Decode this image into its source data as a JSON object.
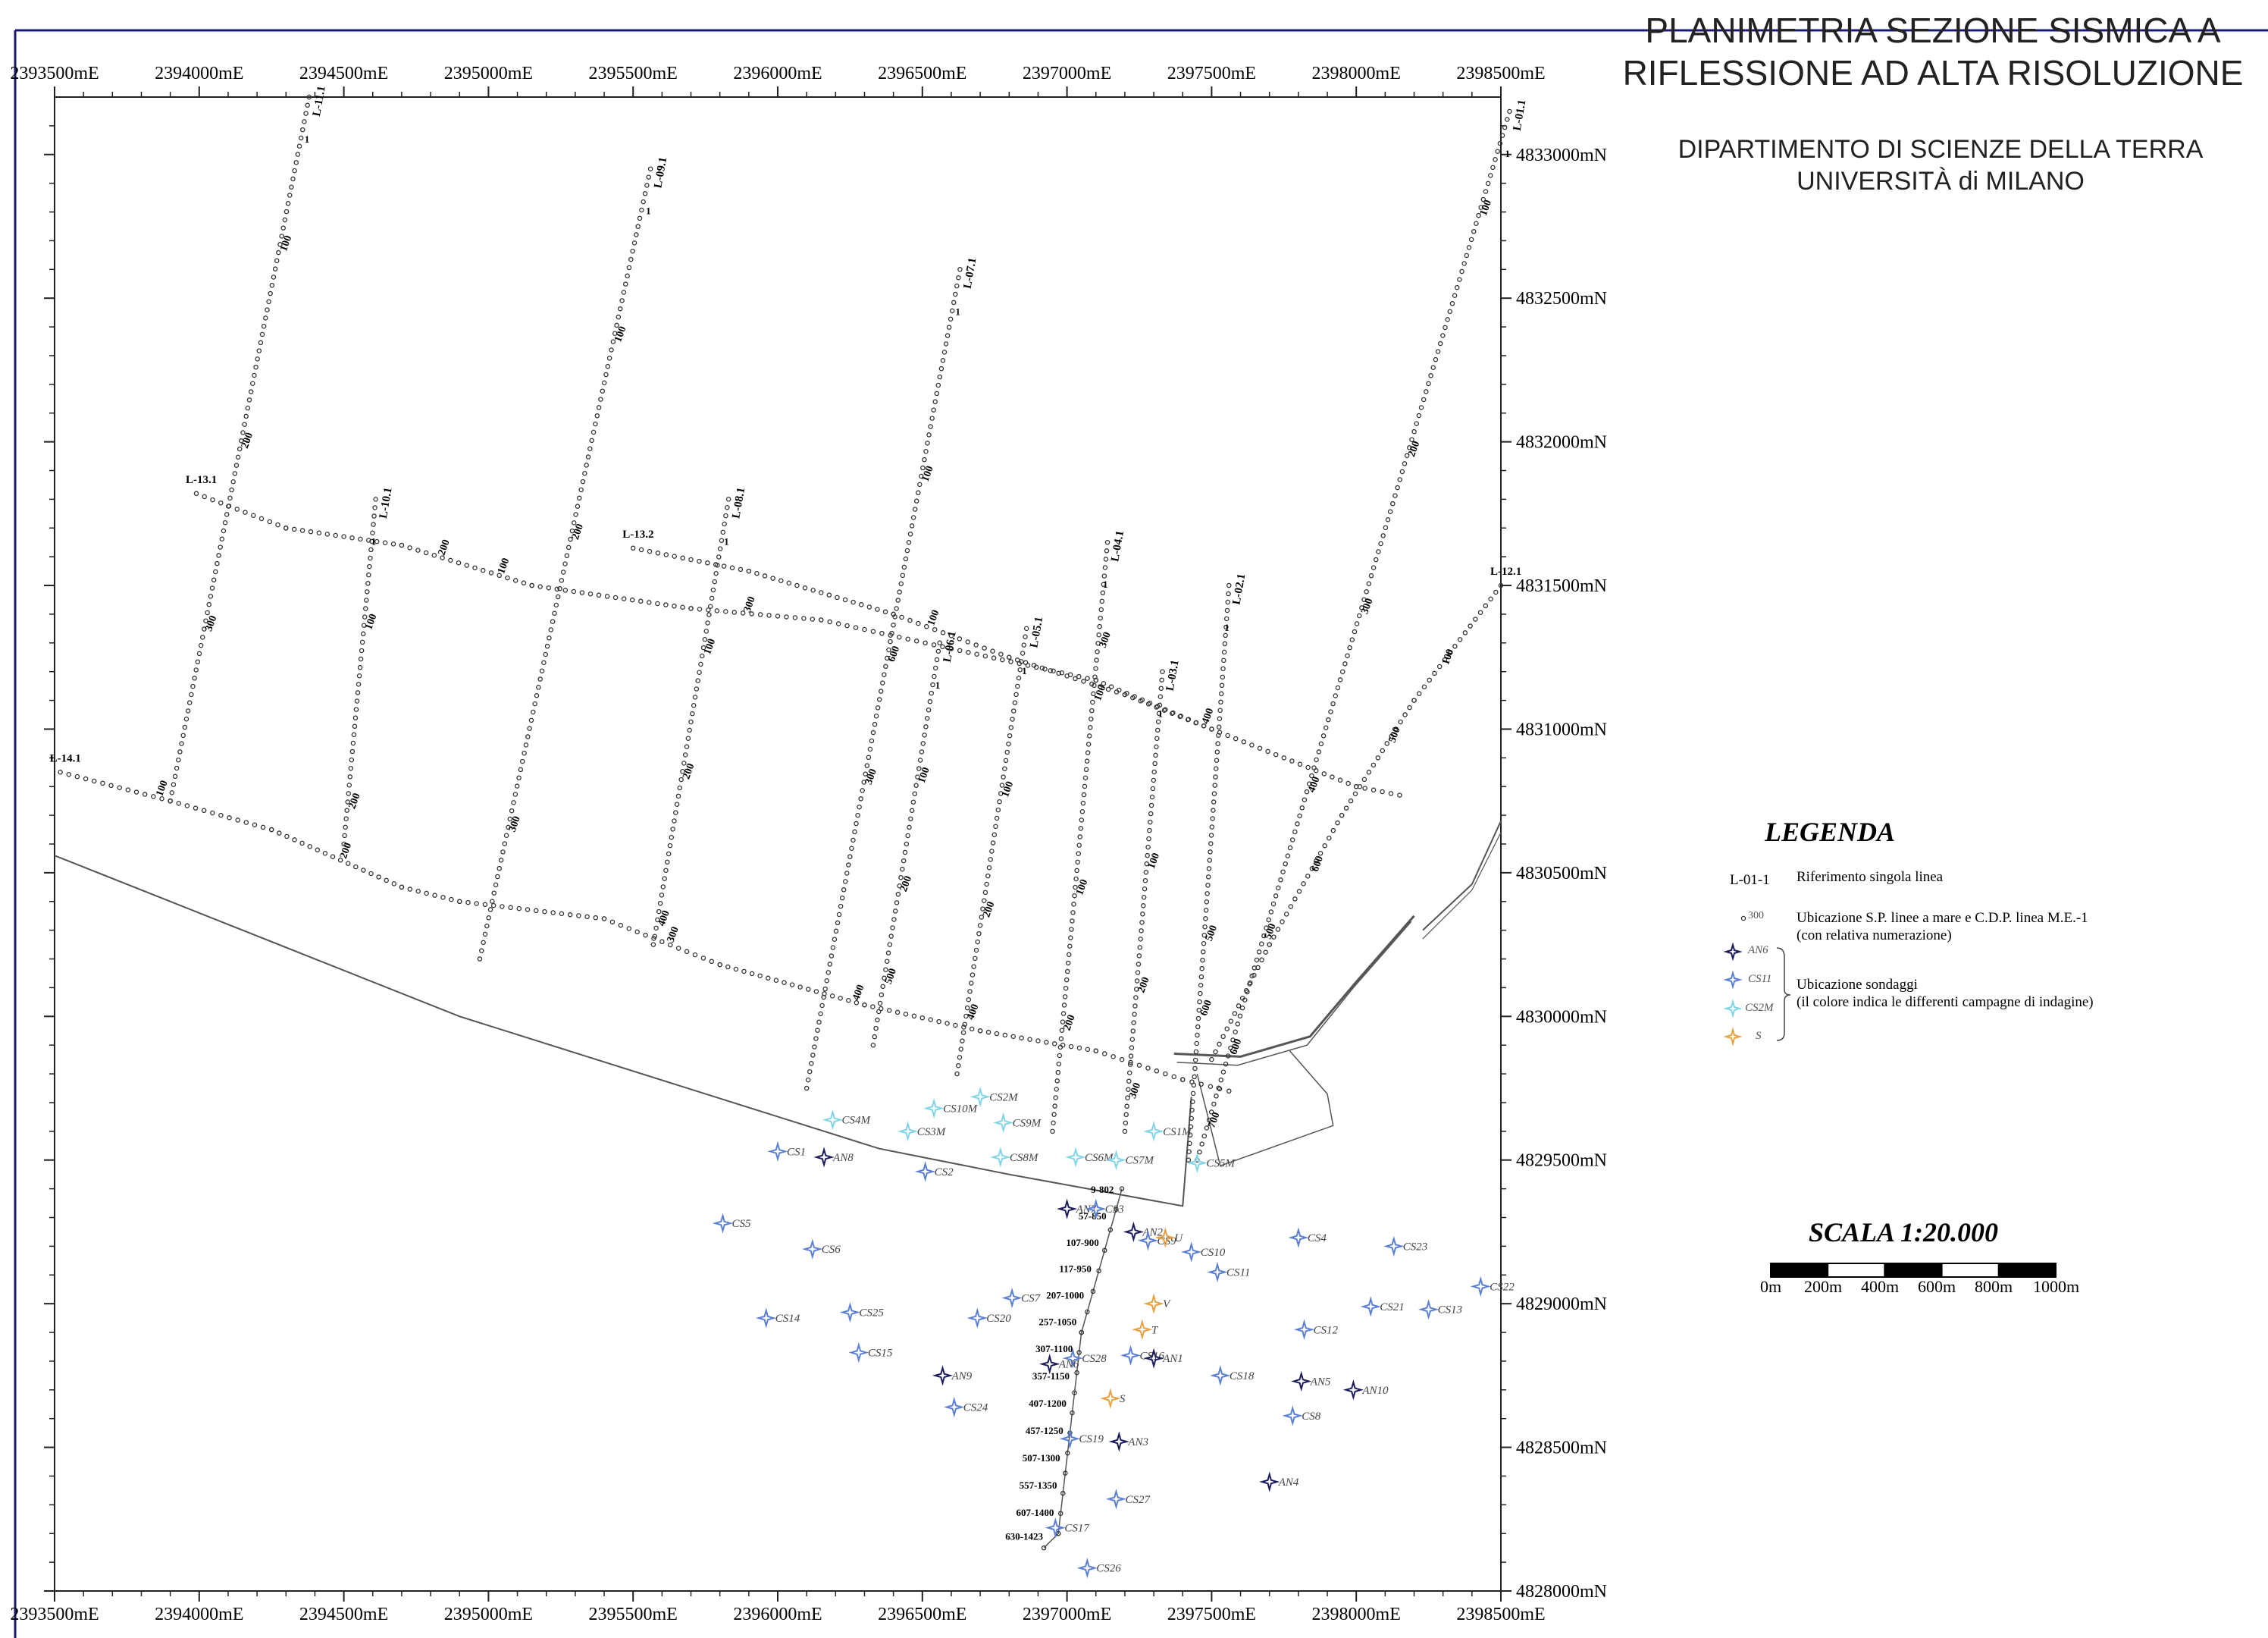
{
  "title": {
    "line1": "PLANIMETRIA SEZIONE SISMICA A",
    "line2": "RIFLESSIONE AD ALTA RISOLUZIONE"
  },
  "subtitle": {
    "line1": "DIPARTIMENTO DI SCIENZE DELLA TERRA",
    "line2": "UNIVERSITÀ di  MILANO"
  },
  "axes": {
    "easting_labels": [
      "2393500mE",
      "2394000mE",
      "2394500mE",
      "2395000mE",
      "2395500mE",
      "2396000mE",
      "2396500mE",
      "2397000mE",
      "2397500mE",
      "2398000mE",
      "2398500mE"
    ],
    "northing_labels": [
      "4833000mN",
      "4832500mN",
      "4832000mN",
      "4831500mN",
      "4831000mN",
      "4830500mN",
      "4830000mN",
      "4829500mN",
      "4829000mN",
      "4828500mN",
      "4828000mN"
    ]
  },
  "legend": {
    "title": "LEGENDA",
    "line_ref_code": "L-01-1",
    "line_ref_text": "Riferimento singola linea",
    "sp_code": "300",
    "sp_text1": "Ubicazione S.P. linee a mare e C.D.P. linea M.E.-1",
    "sp_text2": "(con relativa numerazione)",
    "sond_codes": [
      "AN6",
      "CS11",
      "CS2M",
      "S"
    ],
    "sond_text1": "Ubicazione sondaggi",
    "sond_text2": "(il colore indica le differenti campagne di indagine)"
  },
  "scale": {
    "title": "SCALA 1:20.000",
    "labels": [
      "0m",
      "200m",
      "400m",
      "600m",
      "800m",
      "1000m"
    ]
  },
  "colors": {
    "frame": "#1a1a6e",
    "line_dots": "#333333",
    "coast": "#555555",
    "an": "#1a1a5e",
    "cs": "#5b7fd4",
    "csm": "#7fd6e8",
    "orange": "#e8a040"
  },
  "seismic_lines": [
    {
      "name": "L-11.1",
      "from": [
        2394380,
        4833200
      ],
      "to": [
        2393900,
        4830750
      ],
      "labels": [
        {
          "t": "100",
          "at": 0.22
        },
        {
          "t": "200",
          "at": 0.5
        },
        {
          "t": "300",
          "at": 0.76
        }
      ]
    },
    {
      "name": "L-09.1",
      "from": [
        2395560,
        4832950
      ],
      "to": [
        2394970,
        4830200
      ],
      "labels": [
        {
          "t": "100",
          "at": 0.22
        },
        {
          "t": "200",
          "at": 0.47
        },
        {
          "t": "300",
          "at": 0.84
        }
      ]
    },
    {
      "name": "L-07.1",
      "from": [
        2396630,
        4832600
      ],
      "to": [
        2396100,
        4829750
      ],
      "labels": [
        {
          "t": "100",
          "at": 0.26
        },
        {
          "t": "600",
          "at": 0.48
        },
        {
          "t": "300",
          "at": 0.63
        }
      ]
    },
    {
      "name": "L-01.1",
      "from": [
        2398530,
        4833150
      ],
      "to": [
        2397450,
        4829500
      ],
      "labels": [
        {
          "t": "100",
          "at": 0.1
        },
        {
          "t": "200",
          "at": 0.33
        },
        {
          "t": "300",
          "at": 0.48
        },
        {
          "t": "400",
          "at": 0.65
        },
        {
          "t": "500",
          "at": 0.79
        },
        {
          "t": "600",
          "at": 0.9
        },
        {
          "t": "700",
          "at": 0.97
        }
      ]
    },
    {
      "name": "L-10.1",
      "from": [
        2394610,
        4831800
      ],
      "to": [
        2394500,
        4830600
      ],
      "labels": [
        {
          "t": "100",
          "at": 0.38
        },
        {
          "t": "200",
          "at": 0.9
        }
      ]
    },
    {
      "name": "L-08.1",
      "from": [
        2395830,
        4831800
      ],
      "to": [
        2395570,
        4830250
      ],
      "labels": [
        {
          "t": "100",
          "at": 0.35
        },
        {
          "t": "200",
          "at": 0.63
        },
        {
          "t": "400",
          "at": 0.96
        }
      ]
    },
    {
      "name": "L-06.1",
      "from": [
        2396560,
        4831300
      ],
      "to": [
        2396330,
        4829900
      ],
      "labels": [
        {
          "t": "100",
          "at": 0.35
        },
        {
          "t": "200",
          "at": 0.62
        },
        {
          "t": "500",
          "at": 0.85
        }
      ]
    },
    {
      "name": "L-05.1",
      "from": [
        2396860,
        4831350
      ],
      "to": [
        2396620,
        4829800
      ],
      "labels": [
        {
          "t": "100",
          "at": 0.38
        },
        {
          "t": "200",
          "at": 0.65
        },
        {
          "t": "400",
          "at": 0.88
        }
      ]
    },
    {
      "name": "L-04.1",
      "from": [
        2397140,
        4831650
      ],
      "to": [
        2396950,
        4829600
      ],
      "labels": [
        {
          "t": "100",
          "at": 0.27
        },
        {
          "t": "300",
          "at": 0.18
        },
        {
          "t": "100",
          "at": 0.6
        },
        {
          "t": "200",
          "at": 0.83
        }
      ]
    },
    {
      "name": "L-03.1",
      "from": [
        2397330,
        4831200
      ],
      "to": [
        2397200,
        4829600
      ],
      "labels": [
        {
          "t": "100",
          "at": 0.43
        },
        {
          "t": "200",
          "at": 0.7
        },
        {
          "t": "300",
          "at": 0.93
        }
      ]
    },
    {
      "name": "L-02.1",
      "from": [
        2397560,
        4831500
      ],
      "to": [
        2397420,
        4829500
      ],
      "labels": [
        {
          "t": "500",
          "at": 0.62
        },
        {
          "t": "600",
          "at": 0.75
        }
      ]
    }
  ],
  "cross_lines": [
    {
      "name": "L-13.1",
      "points": [
        [
          2393990,
          4831820
        ],
        [
          2394300,
          4831700
        ],
        [
          2394700,
          4831640
        ],
        [
          2395150,
          4831500
        ],
        [
          2395700,
          4831420
        ],
        [
          2396150,
          4831380
        ],
        [
          2396600,
          4831280
        ],
        [
          2397100,
          4831170
        ],
        [
          2397500,
          4831000
        ],
        [
          2398000,
          4830800
        ],
        [
          2398150,
          4830770
        ]
      ],
      "labels": [
        {
          "t": "100",
          "at": 0.25
        },
        {
          "t": "200",
          "at": 0.2
        },
        {
          "t": "300",
          "at": 0.45
        }
      ]
    },
    {
      "name": "L-13.2",
      "points": [
        [
          2395500,
          4831630
        ],
        [
          2395900,
          4831550
        ],
        [
          2396400,
          4831400
        ],
        [
          2396800,
          4831250
        ],
        [
          2397200,
          4831120
        ],
        [
          2397500,
          4831000
        ]
      ],
      "labels": [
        {
          "t": "100",
          "at": 0.5
        },
        {
          "t": "400",
          "at": 0.98
        }
      ]
    },
    {
      "name": "L-14.1",
      "points": [
        [
          2393520,
          4830850
        ],
        [
          2393900,
          4830750
        ],
        [
          2394250,
          4830650
        ],
        [
          2394700,
          4830450
        ],
        [
          2394900,
          4830400
        ],
        [
          2395400,
          4830340
        ],
        [
          2395800,
          4830180
        ],
        [
          2396300,
          4830040
        ],
        [
          2396700,
          4829950
        ],
        [
          2397100,
          4829880
        ],
        [
          2397400,
          4829780
        ],
        [
          2397560,
          4829740
        ]
      ],
      "labels": [
        {
          "t": "100",
          "at": 0.08
        },
        {
          "t": "200",
          "at": 0.24
        },
        {
          "t": "300",
          "at": 0.52
        },
        {
          "t": "400",
          "at": 0.68
        }
      ]
    },
    {
      "name": "L-12.1",
      "points": [
        [
          2398500,
          4831500
        ],
        [
          2398200,
          4831100
        ],
        [
          2397950,
          4830700
        ],
        [
          2397700,
          4830250
        ],
        [
          2397500,
          4829850
        ]
      ],
      "labels": [
        {
          "t": "100",
          "at": 0.18
        },
        {
          "t": "500",
          "at": 0.35
        },
        {
          "t": "600",
          "at": 0.62
        }
      ]
    }
  ],
  "me_line": {
    "points": [
      [
        2397190,
        4829400
      ],
      [
        2397050,
        4828900
      ],
      [
        2396970,
        4828200
      ],
      [
        2396920,
        4828150
      ]
    ],
    "labels": [
      "9-802",
      "57-850",
      "107-900",
      "117-950",
      "207-1000",
      "257-1050",
      "307-1100",
      "357-1150",
      "407-1200",
      "457-1250",
      "507-1300",
      "557-1350",
      "607-1400",
      "630-1423"
    ]
  },
  "boreholes": [
    {
      "id": "CS1",
      "e": 2396000,
      "n": 4829530,
      "kind": "cs"
    },
    {
      "id": "AN8",
      "e": 2396160,
      "n": 4829510,
      "kind": "an"
    },
    {
      "id": "CS4M",
      "e": 2396190,
      "n": 4829640,
      "kind": "csm"
    },
    {
      "id": "CS3M",
      "e": 2396450,
      "n": 4829600,
      "kind": "csm"
    },
    {
      "id": "CS10M",
      "e": 2396540,
      "n": 4829680,
      "kind": "csm"
    },
    {
      "id": "CS2M",
      "e": 2396700,
      "n": 4829720,
      "kind": "csm"
    },
    {
      "id": "CS9M",
      "e": 2396780,
      "n": 4829630,
      "kind": "csm"
    },
    {
      "id": "CS8M",
      "e": 2396770,
      "n": 4829510,
      "kind": "csm"
    },
    {
      "id": "CS6M",
      "e": 2397030,
      "n": 4829510,
      "kind": "csm"
    },
    {
      "id": "CS7M",
      "e": 2397170,
      "n": 4829500,
      "kind": "csm"
    },
    {
      "id": "CS1M",
      "e": 2397300,
      "n": 4829600,
      "kind": "csm"
    },
    {
      "id": "CS5M",
      "e": 2397450,
      "n": 4829490,
      "kind": "csm"
    },
    {
      "id": "CS2",
      "e": 2396510,
      "n": 4829460,
      "kind": "cs"
    },
    {
      "id": "CS5",
      "e": 2395810,
      "n": 4829280,
      "kind": "cs"
    },
    {
      "id": "CS6",
      "e": 2396120,
      "n": 4829190,
      "kind": "cs"
    },
    {
      "id": "AN7",
      "e": 2397000,
      "n": 4829330,
      "kind": "an"
    },
    {
      "id": "CS3",
      "e": 2397100,
      "n": 4829330,
      "kind": "cs"
    },
    {
      "id": "AN2",
      "e": 2397230,
      "n": 4829250,
      "kind": "an"
    },
    {
      "id": "CS9",
      "e": 2397280,
      "n": 4829220,
      "kind": "cs"
    },
    {
      "id": "U",
      "e": 2397340,
      "n": 4829230,
      "kind": "orange"
    },
    {
      "id": "CS10",
      "e": 2397430,
      "n": 4829180,
      "kind": "cs"
    },
    {
      "id": "CS11",
      "e": 2397520,
      "n": 4829110,
      "kind": "cs"
    },
    {
      "id": "CS4",
      "e": 2397800,
      "n": 4829230,
      "kind": "cs"
    },
    {
      "id": "CS23",
      "e": 2398130,
      "n": 4829200,
      "kind": "cs"
    },
    {
      "id": "CS22",
      "e": 2398430,
      "n": 4829060,
      "kind": "cs"
    },
    {
      "id": "CS21",
      "e": 2398050,
      "n": 4828990,
      "kind": "cs"
    },
    {
      "id": "CS13",
      "e": 2398250,
      "n": 4828980,
      "kind": "cs"
    },
    {
      "id": "CS12",
      "e": 2397820,
      "n": 4828910,
      "kind": "cs"
    },
    {
      "id": "CS7",
      "e": 2396810,
      "n": 4829020,
      "kind": "cs"
    },
    {
      "id": "CS20",
      "e": 2396690,
      "n": 4828950,
      "kind": "cs"
    },
    {
      "id": "V",
      "e": 2397300,
      "n": 4829000,
      "kind": "orange"
    },
    {
      "id": "T",
      "e": 2397260,
      "n": 4828910,
      "kind": "orange"
    },
    {
      "id": "CS14",
      "e": 2395960,
      "n": 4828950,
      "kind": "cs"
    },
    {
      "id": "CS25",
      "e": 2396250,
      "n": 4828970,
      "kind": "cs"
    },
    {
      "id": "CS15",
      "e": 2396280,
      "n": 4828830,
      "kind": "cs"
    },
    {
      "id": "CS28",
      "e": 2397020,
      "n": 4828810,
      "kind": "cs"
    },
    {
      "id": "AN6",
      "e": 2396940,
      "n": 4828790,
      "kind": "an"
    },
    {
      "id": "CS16",
      "e": 2397220,
      "n": 4828820,
      "kind": "cs"
    },
    {
      "id": "AN1",
      "e": 2397300,
      "n": 4828810,
      "kind": "an"
    },
    {
      "id": "AN9",
      "e": 2396570,
      "n": 4828750,
      "kind": "an"
    },
    {
      "id": "CS18",
      "e": 2397530,
      "n": 4828750,
      "kind": "cs"
    },
    {
      "id": "AN5",
      "e": 2397810,
      "n": 4828730,
      "kind": "an"
    },
    {
      "id": "AN10",
      "e": 2397990,
      "n": 4828700,
      "kind": "an"
    },
    {
      "id": "S",
      "e": 2397150,
      "n": 4828670,
      "kind": "orange"
    },
    {
      "id": "CS24",
      "e": 2396610,
      "n": 4828640,
      "kind": "cs"
    },
    {
      "id": "CS8",
      "e": 2397780,
      "n": 4828610,
      "kind": "cs"
    },
    {
      "id": "CS19",
      "e": 2397010,
      "n": 4828530,
      "kind": "cs"
    },
    {
      "id": "AN3",
      "e": 2397180,
      "n": 4828520,
      "kind": "an"
    },
    {
      "id": "AN4",
      "e": 2397700,
      "n": 4828380,
      "kind": "an"
    },
    {
      "id": "CS27",
      "e": 2397170,
      "n": 4828320,
      "kind": "cs"
    },
    {
      "id": "CS17",
      "e": 2396960,
      "n": 4828220,
      "kind": "cs"
    },
    {
      "id": "CS26",
      "e": 2397070,
      "n": 4828080,
      "kind": "cs"
    }
  ]
}
